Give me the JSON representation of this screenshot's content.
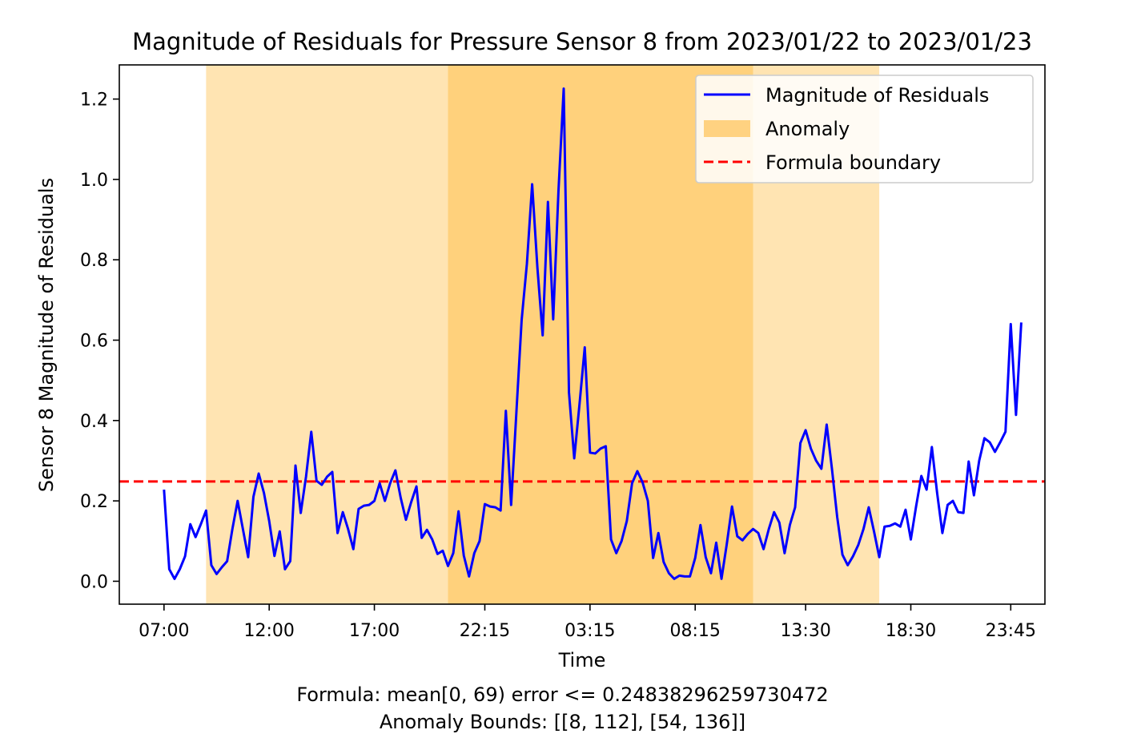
{
  "chart_data": {
    "type": "line",
    "title": "Magnitude of Residuals for Pressure Sensor 8 from 2023/01/22 to 2023/01/23",
    "xlabel": "Time",
    "ylabel": "Sensor 8 Magnitude of Residuals",
    "xlim": [
      -8.5,
      167.5
    ],
    "ylim": [
      -0.057,
      1.285
    ],
    "x_ticks": [
      {
        "index": 0,
        "label": "07:00"
      },
      {
        "index": 20,
        "label": "12:00"
      },
      {
        "index": 40,
        "label": "17:00"
      },
      {
        "index": 61,
        "label": "22:15"
      },
      {
        "index": 81,
        "label": "03:15"
      },
      {
        "index": 101,
        "label": "08:15"
      },
      {
        "index": 122,
        "label": "13:30"
      },
      {
        "index": 142,
        "label": "18:30"
      },
      {
        "index": 161,
        "label": "23:45"
      }
    ],
    "y_ticks": [
      0.0,
      0.2,
      0.4,
      0.6,
      0.8,
      1.0,
      1.2
    ],
    "y_tick_labels": [
      "0.0",
      "0.2",
      "0.4",
      "0.6",
      "0.8",
      "1.0",
      "1.2"
    ],
    "grid": false,
    "legend_position": "top-right",
    "series": [
      {
        "name": "Magnitude of Residuals",
        "color": "#0000ff",
        "values": [
          0.228,
          0.03,
          0.006,
          0.03,
          0.062,
          0.142,
          0.11,
          0.142,
          0.176,
          0.04,
          0.018,
          0.035,
          0.05,
          0.13,
          0.2,
          0.13,
          0.06,
          0.21,
          0.268,
          0.22,
          0.15,
          0.063,
          0.124,
          0.03,
          0.05,
          0.288,
          0.17,
          0.26,
          0.372,
          0.25,
          0.24,
          0.26,
          0.272,
          0.12,
          0.172,
          0.13,
          0.08,
          0.18,
          0.188,
          0.19,
          0.2,
          0.244,
          0.2,
          0.244,
          0.276,
          0.208,
          0.153,
          0.197,
          0.236,
          0.108,
          0.128,
          0.104,
          0.068,
          0.076,
          0.038,
          0.07,
          0.174,
          0.064,
          0.012,
          0.07,
          0.1,
          0.192,
          0.186,
          0.184,
          0.176,
          0.424,
          0.19,
          0.42,
          0.65,
          0.79,
          0.988,
          0.78,
          0.612,
          0.944,
          0.652,
          0.97,
          1.226,
          0.47,
          0.306,
          0.44,
          0.582,
          0.32,
          0.318,
          0.33,
          0.336,
          0.104,
          0.07,
          0.1,
          0.15,
          0.244,
          0.274,
          0.246,
          0.2,
          0.058,
          0.12,
          0.048,
          0.02,
          0.006,
          0.014,
          0.012,
          0.012,
          0.058,
          0.14,
          0.06,
          0.02,
          0.096,
          0.006,
          0.092,
          0.186,
          0.112,
          0.102,
          0.118,
          0.13,
          0.12,
          0.08,
          0.13,
          0.172,
          0.146,
          0.07,
          0.14,
          0.184,
          0.344,
          0.376,
          0.33,
          0.3,
          0.28,
          0.39,
          0.28,
          0.16,
          0.066,
          0.04,
          0.062,
          0.09,
          0.13,
          0.184,
          0.124,
          0.06,
          0.136,
          0.138,
          0.144,
          0.136,
          0.178,
          0.104,
          0.186,
          0.262,
          0.228,
          0.334,
          0.22,
          0.12,
          0.19,
          0.2,
          0.172,
          0.17,
          0.298,
          0.214,
          0.3,
          0.356,
          0.346,
          0.322,
          0.346,
          0.372,
          0.64,
          0.414,
          0.644
        ]
      },
      {
        "name": "Anomaly",
        "color": "#ffa500",
        "regions": [
          {
            "start": 8,
            "end": 112
          },
          {
            "start": 54,
            "end": 136
          }
        ]
      },
      {
        "name": "Formula boundary",
        "color": "#ff0000",
        "y": 0.24838296259730472
      }
    ],
    "footer": {
      "formula": "Formula: mean[0, 69) error <= 0.24838296259730472",
      "bounds": "Anomaly Bounds: [[8, 112], [54, 136]]"
    }
  }
}
